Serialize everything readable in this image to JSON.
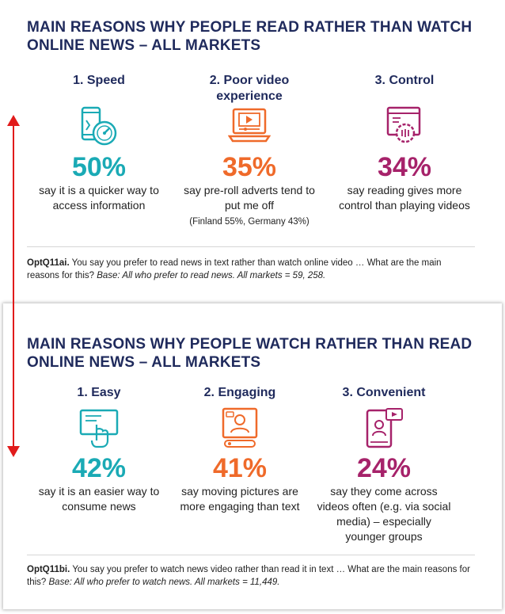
{
  "panel_read": {
    "title": "MAIN REASONS WHY PEOPLE READ RATHER THAN WATCH ONLINE NEWS – ALL MARKETS",
    "items": [
      {
        "heading": "1. Speed",
        "icon": "phone-speedometer-icon",
        "percent": "50%",
        "desc": "say it is a quicker way to access information",
        "note": ""
      },
      {
        "heading": "2. Poor video experience",
        "icon": "laptop-video-ad-icon",
        "percent": "35%",
        "desc": "say pre-roll adverts tend to put me off",
        "note": "(Finland 55%, Germany 43%)"
      },
      {
        "heading": "3. Control",
        "icon": "browser-settings-icon",
        "percent": "34%",
        "desc": "say reading gives more control than playing videos",
        "note": ""
      }
    ],
    "footnote": {
      "code": "OptQ11ai.",
      "text": " You say you prefer to read news in text rather than watch online video … What are the main reasons for this? ",
      "base": "Base: All who prefer to read news. All markets = 59, 258."
    }
  },
  "panel_watch": {
    "title": "MAIN REASONS WHY PEOPLE WATCH RATHER THAN READ ONLINE NEWS – ALL MARKETS",
    "items": [
      {
        "heading": "1. Easy",
        "icon": "touch-screen-icon",
        "percent": "42%",
        "desc": "say it is an easier way to consume news",
        "note": ""
      },
      {
        "heading": "2. Engaging",
        "icon": "presenter-video-icon",
        "percent": "41%",
        "desc": "say moving pictures are more engaging than text",
        "note": ""
      },
      {
        "heading": "3. Convenient",
        "icon": "social-video-phone-icon",
        "percent": "24%",
        "desc": "say they come across videos often (e.g. via social media) – especially younger groups",
        "note": ""
      }
    ],
    "footnote": {
      "code": "OptQ11bi.",
      "text": " You say you prefer to watch news video rather than read it in text … What are the main reasons for this? ",
      "base": "Base: All who prefer to watch news. All markets = 11,449."
    }
  },
  "colors": {
    "navy": "#1f2a5c",
    "teal": "#1aaab5",
    "orange": "#ef6a2a",
    "magenta": "#a6226a",
    "arrow": "#e11b1b"
  },
  "arrow_icon": "double-headed-arrow-icon"
}
